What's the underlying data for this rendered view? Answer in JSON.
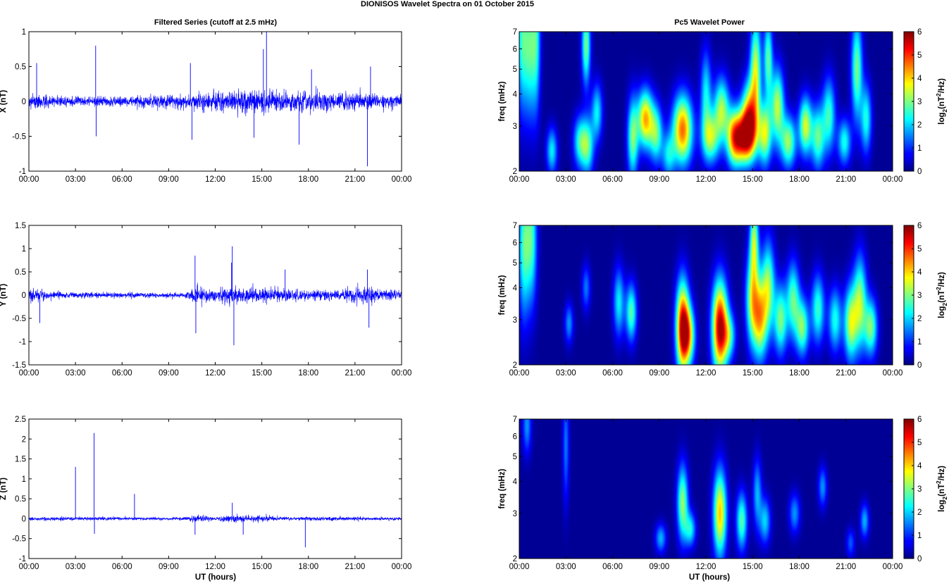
{
  "title": "DIONISOS Wavelet Spectra on 01 October   2015",
  "left_title": "Filtered Series (cutoff at 2.5 mHz)",
  "right_title": "Pc5 Wavelet Power",
  "xlabel": "UT (hours)",
  "freq_label": "freq (mHz)",
  "colorbar_label": "log2(nT²/Hz)",
  "colorbar_label_parts": {
    "log": "log",
    "base": "2",
    "open": "(nT",
    "exp": "2",
    "close": "/Hz)"
  },
  "colors": {
    "trace": "#0000ff",
    "axes": "#000000",
    "background": "#00007f"
  },
  "chart_data": [
    {
      "type": "line",
      "id": "x-series",
      "ylabel": "X (nT)",
      "xlim": [
        0,
        24
      ],
      "ylim": [
        -1,
        1
      ],
      "yticks": [
        "-1",
        "-0.5",
        "0",
        "0.5",
        "1"
      ],
      "xticks": [
        "00:00",
        "03:00",
        "06:00",
        "09:00",
        "12:00",
        "15:00",
        "18:00",
        "21:00",
        "00:00"
      ],
      "base_amplitude": [
        [
          0,
          0.22
        ],
        [
          3,
          0.16
        ],
        [
          7,
          0.2
        ],
        [
          10,
          0.22
        ],
        [
          12,
          0.3
        ],
        [
          14,
          0.35
        ],
        [
          15,
          0.4
        ],
        [
          16,
          0.35
        ],
        [
          18,
          0.3
        ],
        [
          20,
          0.3
        ],
        [
          22,
          0.25
        ],
        [
          24,
          0.2
        ]
      ],
      "spikes": [
        [
          0.5,
          0.55
        ],
        [
          4.3,
          0.8
        ],
        [
          4.33,
          -0.5
        ],
        [
          10.4,
          0.55
        ],
        [
          10.5,
          -0.55
        ],
        [
          14.5,
          -0.52
        ],
        [
          15.3,
          1.0
        ],
        [
          15.1,
          0.75
        ],
        [
          17.4,
          -0.62
        ],
        [
          18.2,
          0.46
        ],
        [
          21.8,
          -0.93
        ],
        [
          22,
          0.5
        ]
      ]
    },
    {
      "type": "line",
      "id": "y-series",
      "ylabel": "Y (nT)",
      "xlim": [
        0,
        24
      ],
      "ylim": [
        -1.5,
        1.5
      ],
      "yticks": [
        "-1.5",
        "-1",
        "-0.5",
        "0",
        "0.5",
        "1",
        "1.5"
      ],
      "xticks": [
        "00:00",
        "03:00",
        "06:00",
        "09:00",
        "12:00",
        "15:00",
        "18:00",
        "21:00",
        "00:00"
      ],
      "base_amplitude": [
        [
          0,
          0.35
        ],
        [
          1.2,
          0.2
        ],
        [
          3,
          0.12
        ],
        [
          7,
          0.15
        ],
        [
          10,
          0.1
        ],
        [
          10.8,
          0.4
        ],
        [
          12,
          0.3
        ],
        [
          13,
          0.5
        ],
        [
          14,
          0.35
        ],
        [
          16,
          0.3
        ],
        [
          20,
          0.25
        ],
        [
          21.5,
          0.45
        ],
        [
          22.5,
          0.3
        ],
        [
          24,
          0.2
        ]
      ],
      "spikes": [
        [
          0.7,
          -0.6
        ],
        [
          10.7,
          0.85
        ],
        [
          10.75,
          -0.82
        ],
        [
          13.1,
          1.05
        ],
        [
          13.2,
          -1.08
        ],
        [
          13.05,
          0.7
        ],
        [
          21.8,
          0.55
        ],
        [
          21.9,
          -0.7
        ],
        [
          16.5,
          0.55
        ]
      ]
    },
    {
      "type": "line",
      "id": "z-series",
      "ylabel": "Z (nT)",
      "xlim": [
        0,
        24
      ],
      "ylim": [
        -1,
        2.5
      ],
      "yticks": [
        "-1",
        "-0.5",
        "0",
        "0.5",
        "1",
        "1.5",
        "2",
        "2.5"
      ],
      "xticks": [
        "00:00",
        "03:00",
        "06:00",
        "09:00",
        "12:00",
        "15:00",
        "18:00",
        "21:00",
        "00:00"
      ],
      "base_amplitude": [
        [
          0,
          0.1
        ],
        [
          10,
          0.08
        ],
        [
          10.8,
          0.2
        ],
        [
          12,
          0.12
        ],
        [
          13.3,
          0.25
        ],
        [
          15,
          0.15
        ],
        [
          17,
          0.1
        ],
        [
          24,
          0.1
        ]
      ],
      "spikes": [
        [
          3.0,
          1.3
        ],
        [
          4.2,
          2.15
        ],
        [
          4.22,
          -0.38
        ],
        [
          6.8,
          0.62
        ],
        [
          10.7,
          -0.4
        ],
        [
          13.1,
          0.4
        ],
        [
          13.8,
          -0.4
        ],
        [
          17.8,
          -0.72
        ]
      ]
    },
    {
      "type": "heatmap",
      "id": "x-power",
      "ylabel": "freq (mHz)",
      "xlim": [
        0,
        24
      ],
      "ylim": [
        2,
        7
      ],
      "y_scale": "log",
      "clim": [
        0,
        6
      ],
      "yticks": [
        "2",
        "3",
        "4",
        "5",
        "6",
        "7"
      ],
      "xticks": [
        "00:00",
        "03:00",
        "06:00",
        "09:00",
        "12:00",
        "15:00",
        "18:00",
        "21:00",
        "00:00"
      ],
      "colorbar_ticks": [
        "0",
        "1",
        "2",
        "3",
        "4",
        "5",
        "6"
      ],
      "blobs": [
        [
          0.2,
          6.5,
          2.5,
          0.25,
          2.5
        ],
        [
          0.7,
          6.0,
          2.4,
          0.25,
          2.4
        ],
        [
          1.1,
          6.5,
          2.6,
          0.2,
          2.1
        ],
        [
          2.1,
          2.4,
          0.8,
          0.25,
          2.2
        ],
        [
          3.9,
          2.6,
          0.9,
          0.3,
          2.4
        ],
        [
          4.4,
          2.5,
          1.0,
          0.28,
          2.6
        ],
        [
          4.3,
          6.2,
          1.4,
          0.2,
          3.0
        ],
        [
          5.0,
          3.4,
          1.0,
          0.25,
          2.2
        ],
        [
          7.3,
          2.7,
          1.4,
          0.25,
          3.0
        ],
        [
          8.1,
          3.2,
          1.0,
          0.35,
          4.3
        ],
        [
          8.8,
          2.8,
          1.0,
          0.3,
          2.8
        ],
        [
          10.5,
          2.9,
          1.2,
          0.45,
          4.8
        ],
        [
          9.6,
          2.3,
          0.8,
          0.3,
          2.0
        ],
        [
          12.3,
          2.7,
          0.9,
          0.4,
          3.2
        ],
        [
          13.0,
          3.5,
          1.1,
          0.35,
          3.2
        ],
        [
          13.8,
          2.7,
          1.0,
          0.35,
          3.6
        ],
        [
          14.5,
          2.7,
          0.9,
          0.5,
          5.0
        ],
        [
          14.8,
          3.3,
          1.2,
          0.35,
          4.0
        ],
        [
          15.2,
          5.0,
          1.8,
          0.25,
          3.5
        ],
        [
          15.8,
          2.8,
          1.1,
          0.3,
          3.5
        ],
        [
          16.6,
          3.6,
          1.3,
          0.3,
          3.4
        ],
        [
          17.3,
          2.6,
          0.9,
          0.35,
          3.2
        ],
        [
          18.4,
          3.0,
          1.0,
          0.3,
          3.6
        ],
        [
          19.2,
          2.7,
          1.1,
          0.3,
          2.8
        ],
        [
          19.9,
          3.3,
          1.3,
          0.3,
          2.6
        ],
        [
          20.9,
          2.6,
          0.8,
          0.3,
          2.4
        ],
        [
          21.7,
          5.0,
          1.8,
          0.25,
          3.0
        ],
        [
          22.3,
          3.2,
          1.2,
          0.25,
          2.4
        ],
        [
          16.0,
          5.5,
          1.4,
          0.2,
          2.8
        ],
        [
          12.0,
          4.0,
          1.5,
          0.25,
          2.2
        ]
      ]
    },
    {
      "type": "heatmap",
      "id": "y-power",
      "ylabel": "freq (mHz)",
      "xlim": [
        0,
        24
      ],
      "ylim": [
        2,
        7
      ],
      "y_scale": "log",
      "clim": [
        0,
        6
      ],
      "yticks": [
        "2",
        "3",
        "4",
        "5",
        "6",
        "7"
      ],
      "xticks": [
        "00:00",
        "03:00",
        "06:00",
        "09:00",
        "12:00",
        "15:00",
        "18:00",
        "21:00",
        "00:00"
      ],
      "colorbar_ticks": [
        "0",
        "1",
        "2",
        "3",
        "4",
        "5",
        "6"
      ],
      "blobs": [
        [
          0.3,
          5.8,
          2.5,
          0.25,
          2.6
        ],
        [
          0.8,
          6.2,
          2.3,
          0.25,
          2.5
        ],
        [
          3.2,
          2.9,
          0.7,
          0.2,
          1.6
        ],
        [
          4.3,
          4.0,
          0.8,
          0.2,
          1.4
        ],
        [
          6.4,
          3.5,
          1.2,
          0.25,
          2.2
        ],
        [
          7.2,
          3.2,
          1.0,
          0.25,
          2.8
        ],
        [
          10.5,
          2.8,
          1.6,
          0.3,
          5.6
        ],
        [
          10.9,
          2.6,
          1.0,
          0.3,
          3.2
        ],
        [
          12.9,
          2.8,
          1.6,
          0.35,
          6.0
        ],
        [
          13.5,
          2.6,
          0.8,
          0.3,
          2.2
        ],
        [
          15.0,
          3.6,
          1.6,
          0.3,
          3.6
        ],
        [
          15.5,
          3.0,
          1.4,
          0.3,
          3.5
        ],
        [
          16.0,
          4.0,
          1.6,
          0.3,
          3.2
        ],
        [
          16.8,
          3.0,
          1.2,
          0.3,
          3.0
        ],
        [
          17.6,
          3.6,
          1.3,
          0.3,
          2.8
        ],
        [
          18.2,
          2.8,
          1.0,
          0.3,
          3.0
        ],
        [
          19.2,
          3.3,
          1.2,
          0.3,
          2.6
        ],
        [
          20.3,
          3.0,
          1.1,
          0.3,
          2.4
        ],
        [
          21.3,
          2.9,
          1.3,
          0.3,
          3.4
        ],
        [
          21.9,
          3.5,
          1.6,
          0.3,
          3.2
        ],
        [
          22.6,
          2.8,
          1.0,
          0.3,
          3.0
        ],
        [
          15.1,
          6.2,
          1.3,
          0.2,
          3.0
        ]
      ]
    },
    {
      "type": "heatmap",
      "id": "z-power",
      "ylabel": "freq (mHz)",
      "xlim": [
        0,
        24
      ],
      "ylim": [
        2,
        7
      ],
      "y_scale": "log",
      "clim": [
        0,
        6
      ],
      "yticks": [
        "2",
        "3",
        "4",
        "5",
        "6",
        "7"
      ],
      "xticks": [
        "00:00",
        "03:00",
        "06:00",
        "09:00",
        "12:00",
        "15:00",
        "18:00",
        "21:00",
        "00:00"
      ],
      "colorbar_ticks": [
        "0",
        "1",
        "2",
        "3",
        "4",
        "5",
        "6"
      ],
      "blobs": [
        [
          0.5,
          6.6,
          1.0,
          0.2,
          1.6
        ],
        [
          3.0,
          5.5,
          2.0,
          0.15,
          1.4
        ],
        [
          9.1,
          2.4,
          0.5,
          0.25,
          1.8
        ],
        [
          10.5,
          3.3,
          1.3,
          0.25,
          3.2
        ],
        [
          11.0,
          2.6,
          0.6,
          0.25,
          2.2
        ],
        [
          12.9,
          3.0,
          1.5,
          0.3,
          4.2
        ],
        [
          14.3,
          2.8,
          1.0,
          0.25,
          2.8
        ],
        [
          15.3,
          3.6,
          1.2,
          0.2,
          1.8
        ],
        [
          15.8,
          2.8,
          0.8,
          0.25,
          2.0
        ],
        [
          17.7,
          3.0,
          0.7,
          0.25,
          1.6
        ],
        [
          19.5,
          3.8,
          0.7,
          0.2,
          1.6
        ],
        [
          21.3,
          2.3,
          0.5,
          0.2,
          1.2
        ],
        [
          22.2,
          2.8,
          0.6,
          0.2,
          1.8
        ]
      ]
    }
  ]
}
